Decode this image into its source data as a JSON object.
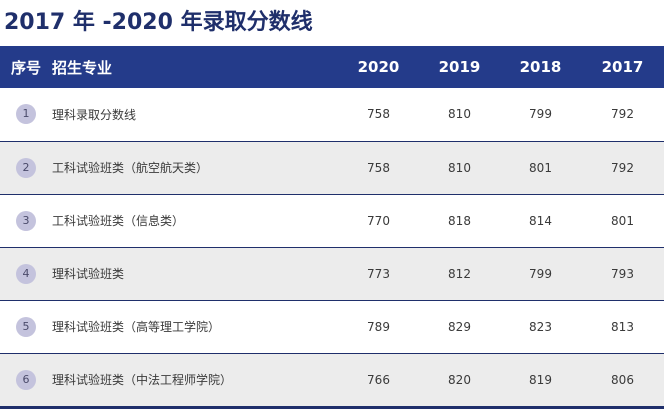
{
  "title": "2017 年 -2020 年录取分数线",
  "table": {
    "headers": {
      "index": "序号",
      "major": "招生专业",
      "y2020": "2020",
      "y2019": "2019",
      "y2018": "2018",
      "y2017": "2017"
    },
    "rows": [
      {
        "index": "1",
        "major": "理科录取分数线",
        "y2020": "758",
        "y2019": "810",
        "y2018": "799",
        "y2017": "792"
      },
      {
        "index": "2",
        "major": "工科试验班类（航空航天类）",
        "y2020": "758",
        "y2019": "810",
        "y2018": "801",
        "y2017": "792"
      },
      {
        "index": "3",
        "major": "工科试验班类（信息类）",
        "y2020": "770",
        "y2019": "818",
        "y2018": "814",
        "y2017": "801"
      },
      {
        "index": "4",
        "major": "理科试验班类",
        "y2020": "773",
        "y2019": "812",
        "y2018": "799",
        "y2017": "793"
      },
      {
        "index": "5",
        "major": "理科试验班类（高等理工学院）",
        "y2020": "789",
        "y2019": "829",
        "y2018": "823",
        "y2017": "813"
      },
      {
        "index": "6",
        "major": "理科试验班类（中法工程师学院）",
        "y2020": "766",
        "y2019": "820",
        "y2018": "819",
        "y2017": "806"
      }
    ]
  },
  "colors": {
    "header_bg": "#243b8a",
    "title": "#1f2f6b",
    "badge": "#c4c3dd",
    "alt_row": "#ececec"
  }
}
